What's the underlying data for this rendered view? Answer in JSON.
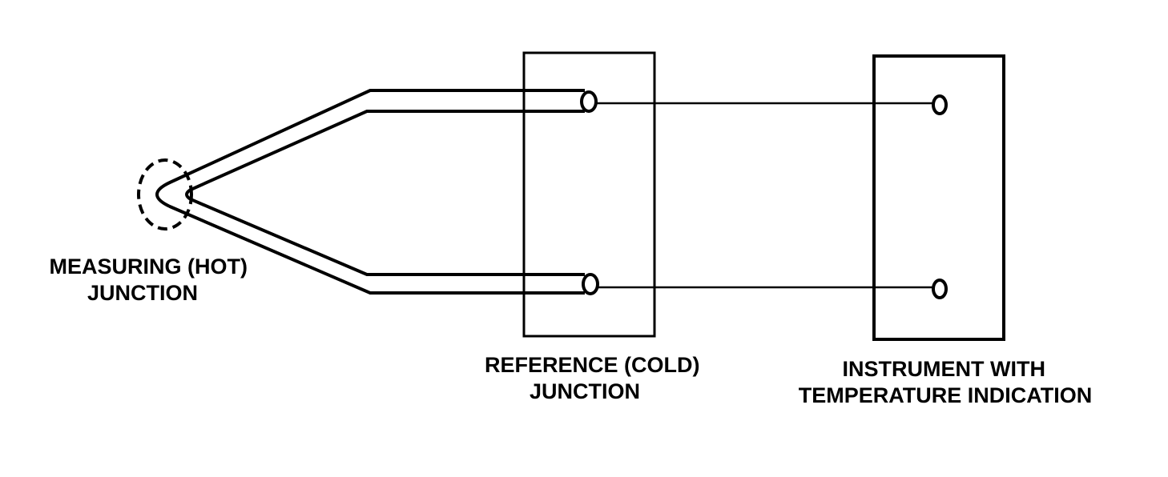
{
  "labels": {
    "measuring_junction": [
      "MEASURING (HOT)",
      "JUNCTION"
    ],
    "reference_junction": [
      "REFERENCE (COLD)",
      "JUNCTION"
    ],
    "instrument": [
      "INSTRUMENT WITH",
      "TEMPERATURE INDICATION"
    ]
  },
  "colors": {
    "line": "#000000",
    "background": "#ffffff"
  }
}
